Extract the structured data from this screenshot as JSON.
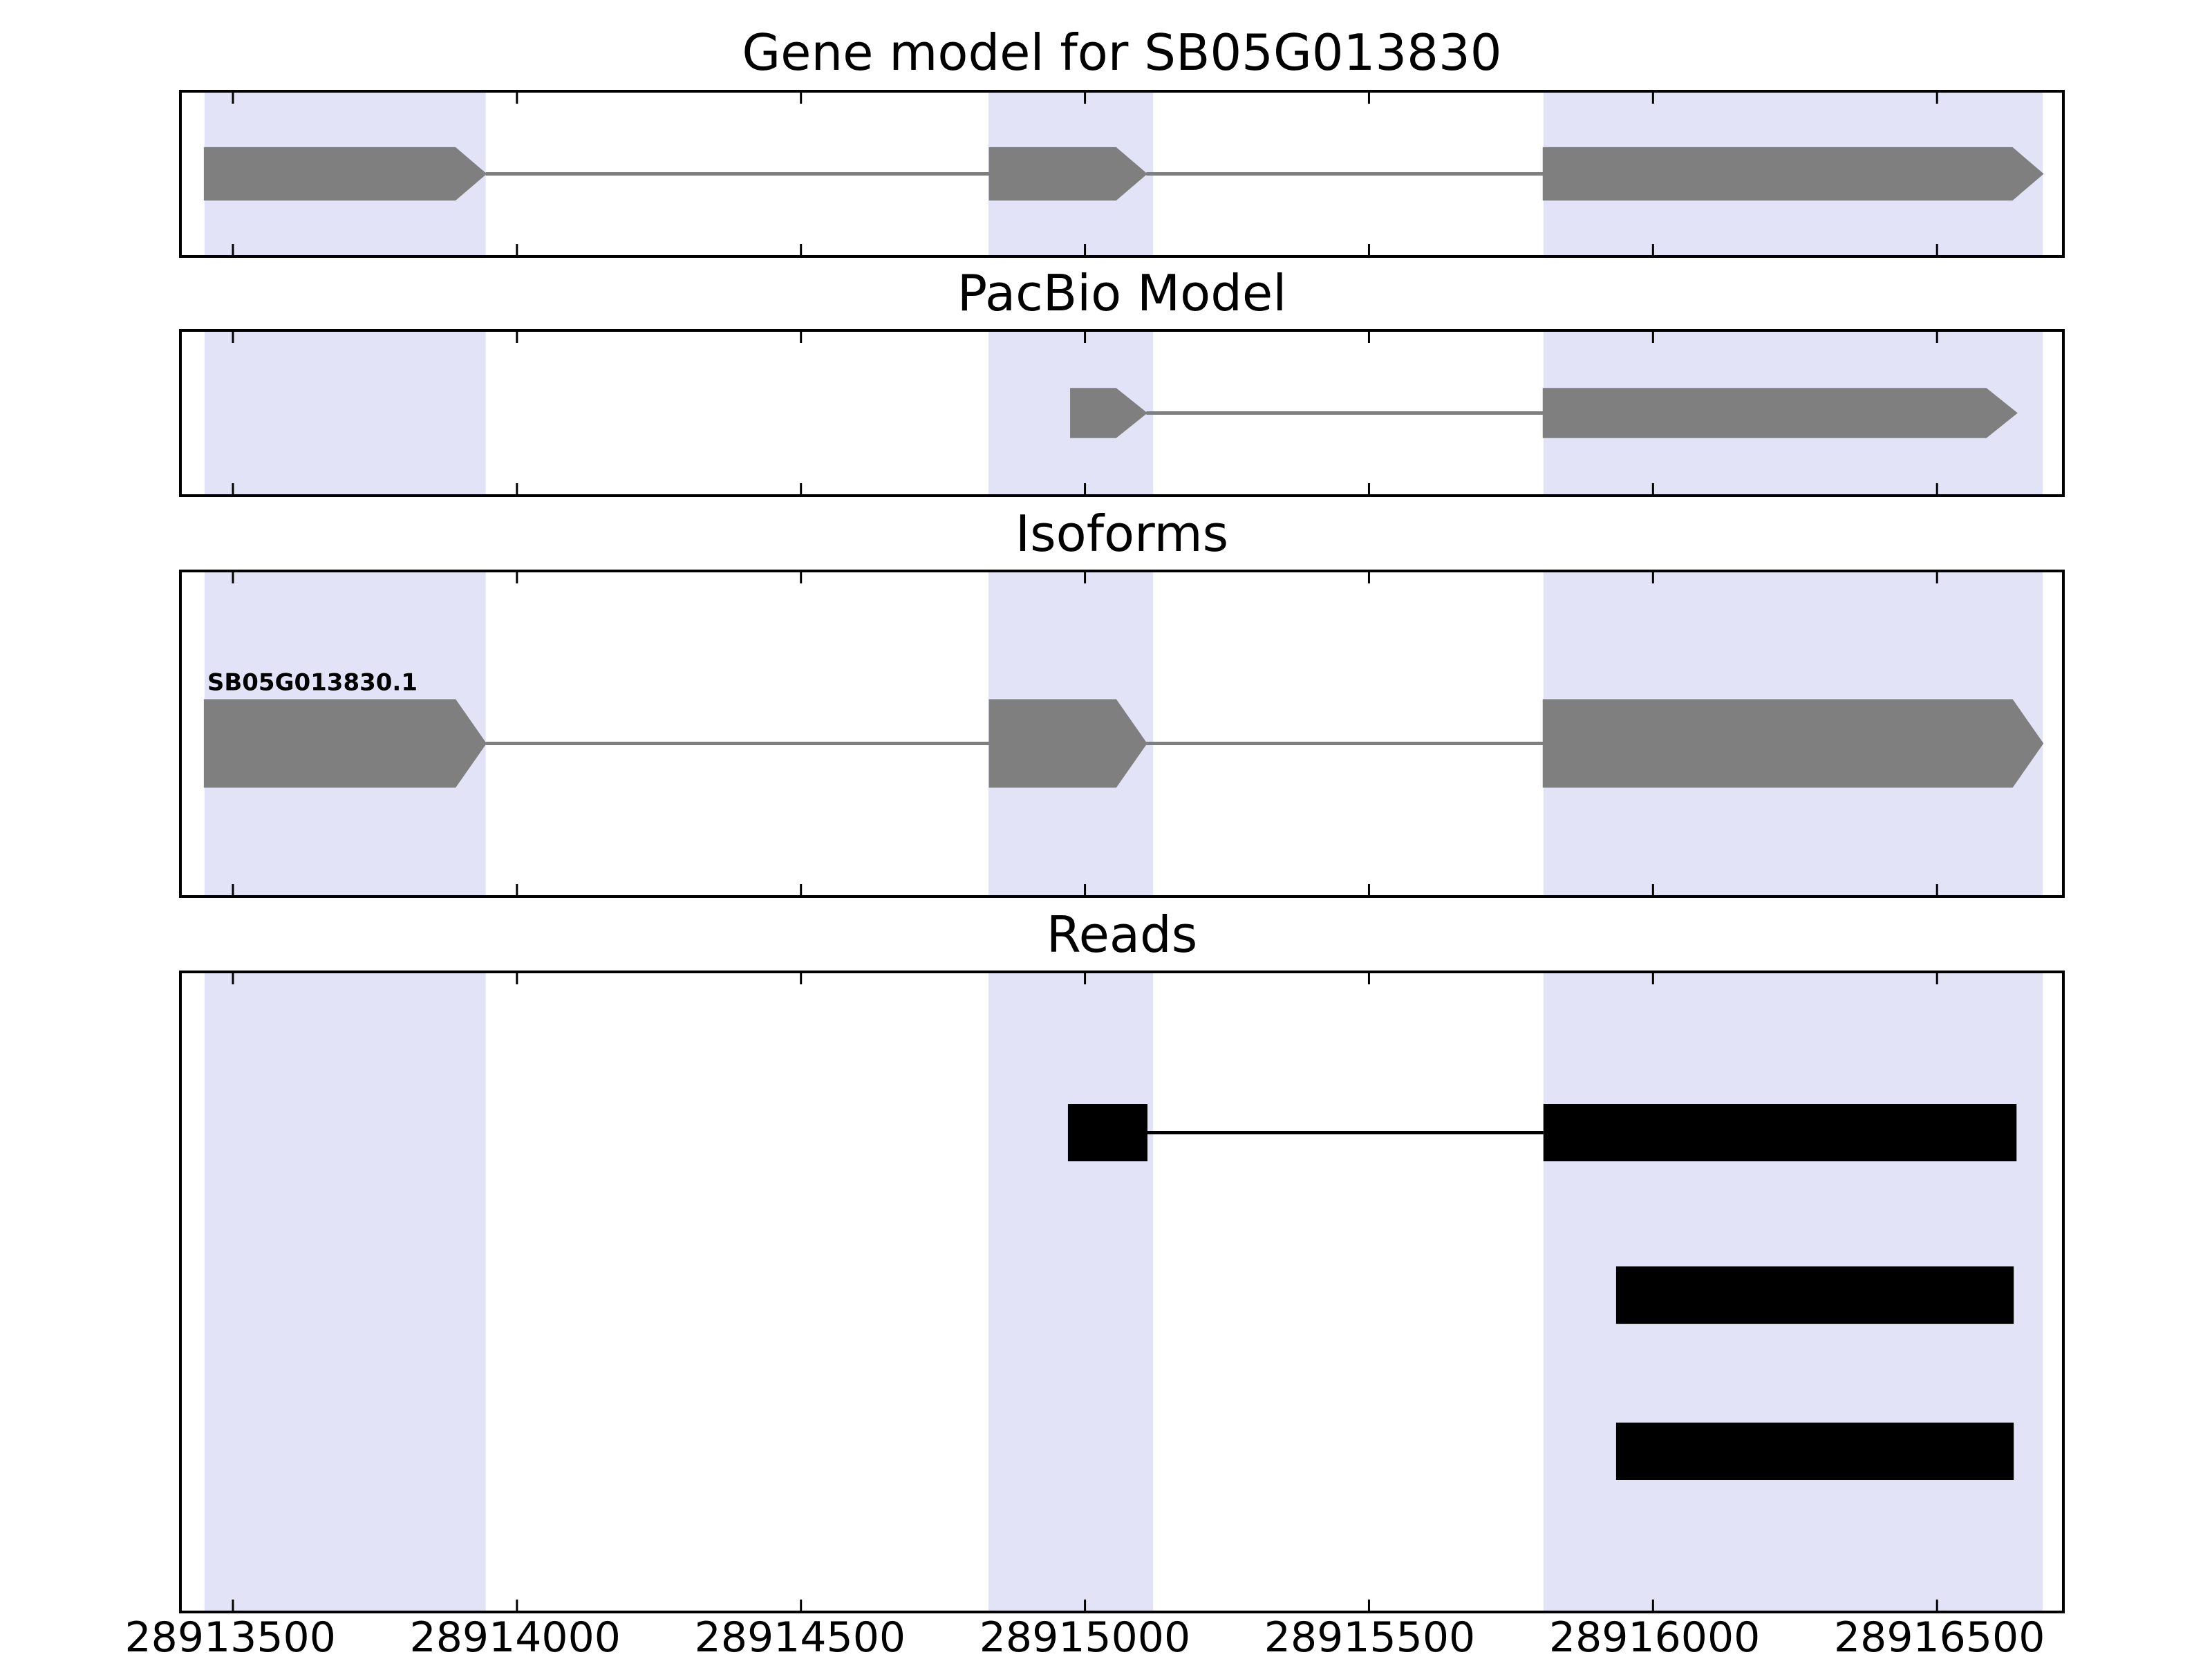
{
  "figure": {
    "background": "#ffffff"
  },
  "chart_data": {
    "type": "gene-browser",
    "x_domain": [
      28913410,
      28916720
    ],
    "x_ticks": [
      28913500,
      28914000,
      28914500,
      28915000,
      28915500,
      28916000,
      28916500
    ],
    "highlight_color": "#e3e3f8",
    "highlights": [
      [
        28913450,
        28913945
      ],
      [
        28914830,
        28915120
      ],
      [
        28915807,
        28916686
      ]
    ],
    "gene_color": "#7f7f7f",
    "read_color": "#000000",
    "panels": [
      {
        "id": "gene-model",
        "title": "Gene model for SB05G013830",
        "features": [
          {
            "type": "transcript",
            "color": "#7f7f7f",
            "y": 0.5,
            "height": 0.32,
            "arrow": "right",
            "exons": [
              [
                28913450,
                28913945
              ],
              [
                28914832,
                28915108
              ],
              [
                28915807,
                28916686
              ]
            ]
          }
        ]
      },
      {
        "id": "pacbio-model",
        "title": "PacBio Model",
        "features": [
          {
            "type": "transcript",
            "color": "#7f7f7f",
            "y": 0.5,
            "height": 0.3,
            "arrow": "right",
            "exons": [
              [
                28914975,
                28915108
              ],
              [
                28915807,
                28916640
              ]
            ]
          }
        ]
      },
      {
        "id": "isoforms",
        "title": "Isoforms",
        "features": [
          {
            "type": "transcript",
            "label": "SB05G013830.1",
            "color": "#7f7f7f",
            "y": 0.53,
            "height": 0.27,
            "arrow": "right",
            "exons": [
              [
                28913450,
                28913945
              ],
              [
                28914832,
                28915108
              ],
              [
                28915807,
                28916686
              ]
            ]
          }
        ]
      },
      {
        "id": "reads",
        "title": "Reads",
        "features": [
          {
            "type": "read",
            "color": "#000000",
            "y": 0.25,
            "height": 0.09,
            "exons": [
              [
                28914970,
                28915110
              ],
              [
                28915807,
                28916640
              ]
            ]
          },
          {
            "type": "read",
            "color": "#000000",
            "y": 0.505,
            "height": 0.09,
            "exons": [
              [
                28915935,
                28916635
              ]
            ]
          },
          {
            "type": "read",
            "color": "#000000",
            "y": 0.75,
            "height": 0.09,
            "exons": [
              [
                28915935,
                28916635
              ]
            ]
          }
        ]
      }
    ]
  }
}
